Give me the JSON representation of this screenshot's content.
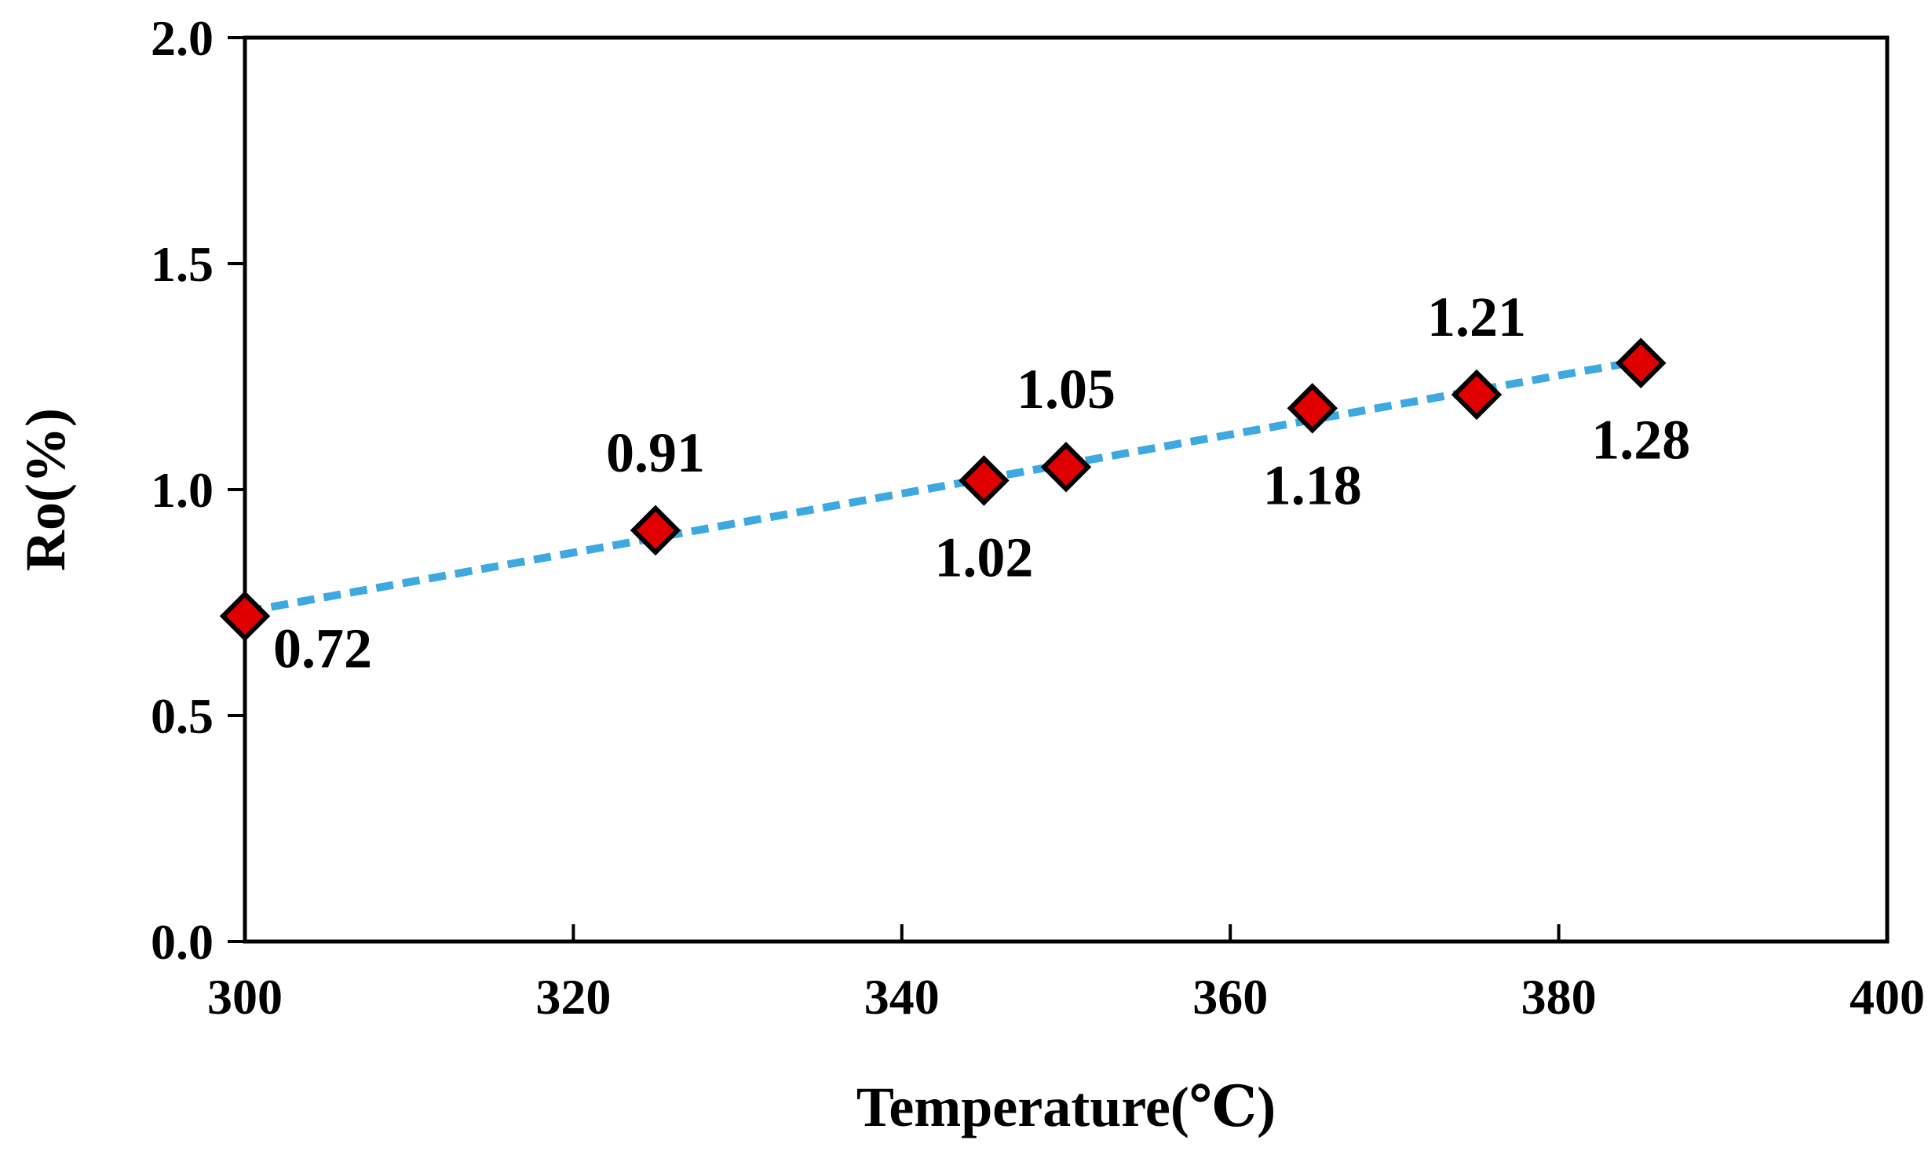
{
  "chart_data": {
    "type": "scatter",
    "title": "",
    "xlabel": "Temperature(℃)",
    "ylabel": "Ro(%)",
    "xlim": [
      300,
      400
    ],
    "ylim": [
      0.0,
      2.0
    ],
    "xticks": [
      300,
      320,
      340,
      360,
      380,
      400
    ],
    "yticks": [
      0.0,
      0.5,
      1.0,
      1.5,
      2.0
    ],
    "xtick_labels": [
      "300",
      "320",
      "340",
      "360",
      "380",
      "400"
    ],
    "ytick_labels": [
      "0.0",
      "0.5",
      "1.0",
      "1.5",
      "2.0"
    ],
    "grid": false,
    "legend": false,
    "series": [
      {
        "name": "Ro",
        "marker": "diamond",
        "marker_fill": "#e00000",
        "marker_edge": "#000000",
        "points": [
          {
            "x": 300,
            "y": 0.72,
            "label": "0.72",
            "label_pos": "below-right"
          },
          {
            "x": 325,
            "y": 0.91,
            "label": "0.91",
            "label_pos": "above"
          },
          {
            "x": 345,
            "y": 1.02,
            "label": "1.02",
            "label_pos": "below"
          },
          {
            "x": 350,
            "y": 1.05,
            "label": "1.05",
            "label_pos": "above"
          },
          {
            "x": 365,
            "y": 1.18,
            "label": "1.18",
            "label_pos": "below"
          },
          {
            "x": 375,
            "y": 1.21,
            "label": "1.21",
            "label_pos": "above"
          },
          {
            "x": 385,
            "y": 1.28,
            "label": "1.28",
            "label_pos": "below"
          }
        ]
      }
    ],
    "trendline": {
      "type": "linear",
      "style": "dashed",
      "color": "#3ea8e0",
      "x_start": 300,
      "x_end": 385,
      "y_start": 0.73,
      "y_end": 1.285
    }
  }
}
